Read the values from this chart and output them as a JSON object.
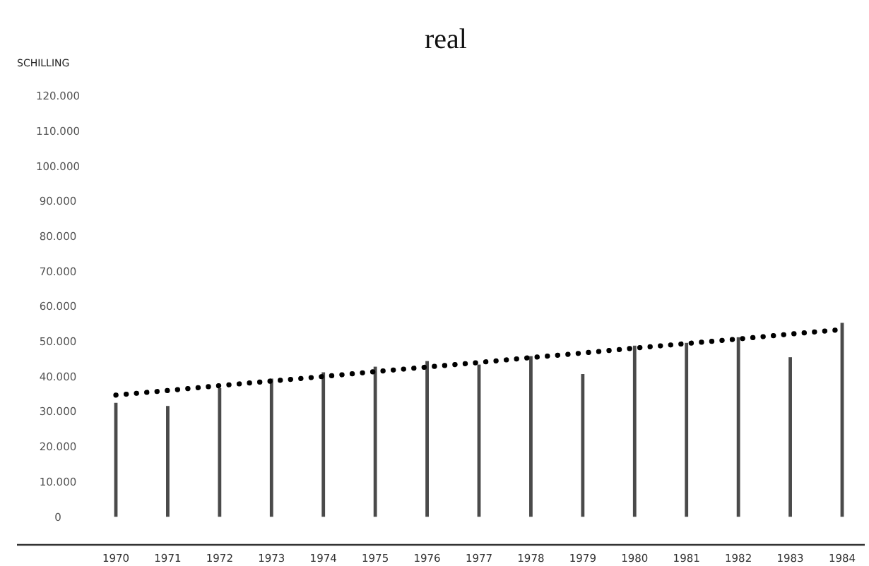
{
  "chart_data": {
    "type": "bar",
    "title": "real",
    "ylabel": "SCHILLING",
    "categories": [
      "1970",
      "1971",
      "1972",
      "1973",
      "1974",
      "1975",
      "1976",
      "1977",
      "1978",
      "1979",
      "1980",
      "1981",
      "1982",
      "1983",
      "1984"
    ],
    "series": [
      {
        "color": "#4a4a4a",
        "values": [
          32500,
          31600,
          36700,
          39400,
          41200,
          42800,
          44400,
          43400,
          45800,
          40700,
          48800,
          49600,
          51200,
          45500,
          55300
        ]
      },
      {
        "type": "line",
        "color": "#000000",
        "values": [
          34700,
          36000,
          37400,
          38700,
          40000,
          41400,
          42700,
          44000,
          45400,
          46700,
          48100,
          49400,
          50700,
          52100,
          53400
        ],
        "line_style": "dotted"
      }
    ],
    "ylim": [
      -8000,
      120000
    ],
    "yticks": [
      0,
      {
        "value": 10000,
        "label": "10.000"
      },
      {
        "value": 20000,
        "label": "20.000"
      },
      {
        "value": 30000,
        "label": "30.000"
      },
      {
        "value": 40000,
        "label": "40.000"
      },
      {
        "value": 50000,
        "label": "50.000"
      },
      {
        "value": 60000,
        "label": "60.000"
      },
      {
        "value": 70000,
        "label": "70.000"
      },
      {
        "value": 80000,
        "label": "80.000"
      },
      {
        "value": 90000,
        "label": "90.000"
      },
      {
        "value": 100000,
        "label": "100.000"
      },
      {
        "value": 110000,
        "label": "110.000"
      },
      {
        "value": 120000,
        "label": "120.000"
      }
    ],
    "grid": false
  }
}
